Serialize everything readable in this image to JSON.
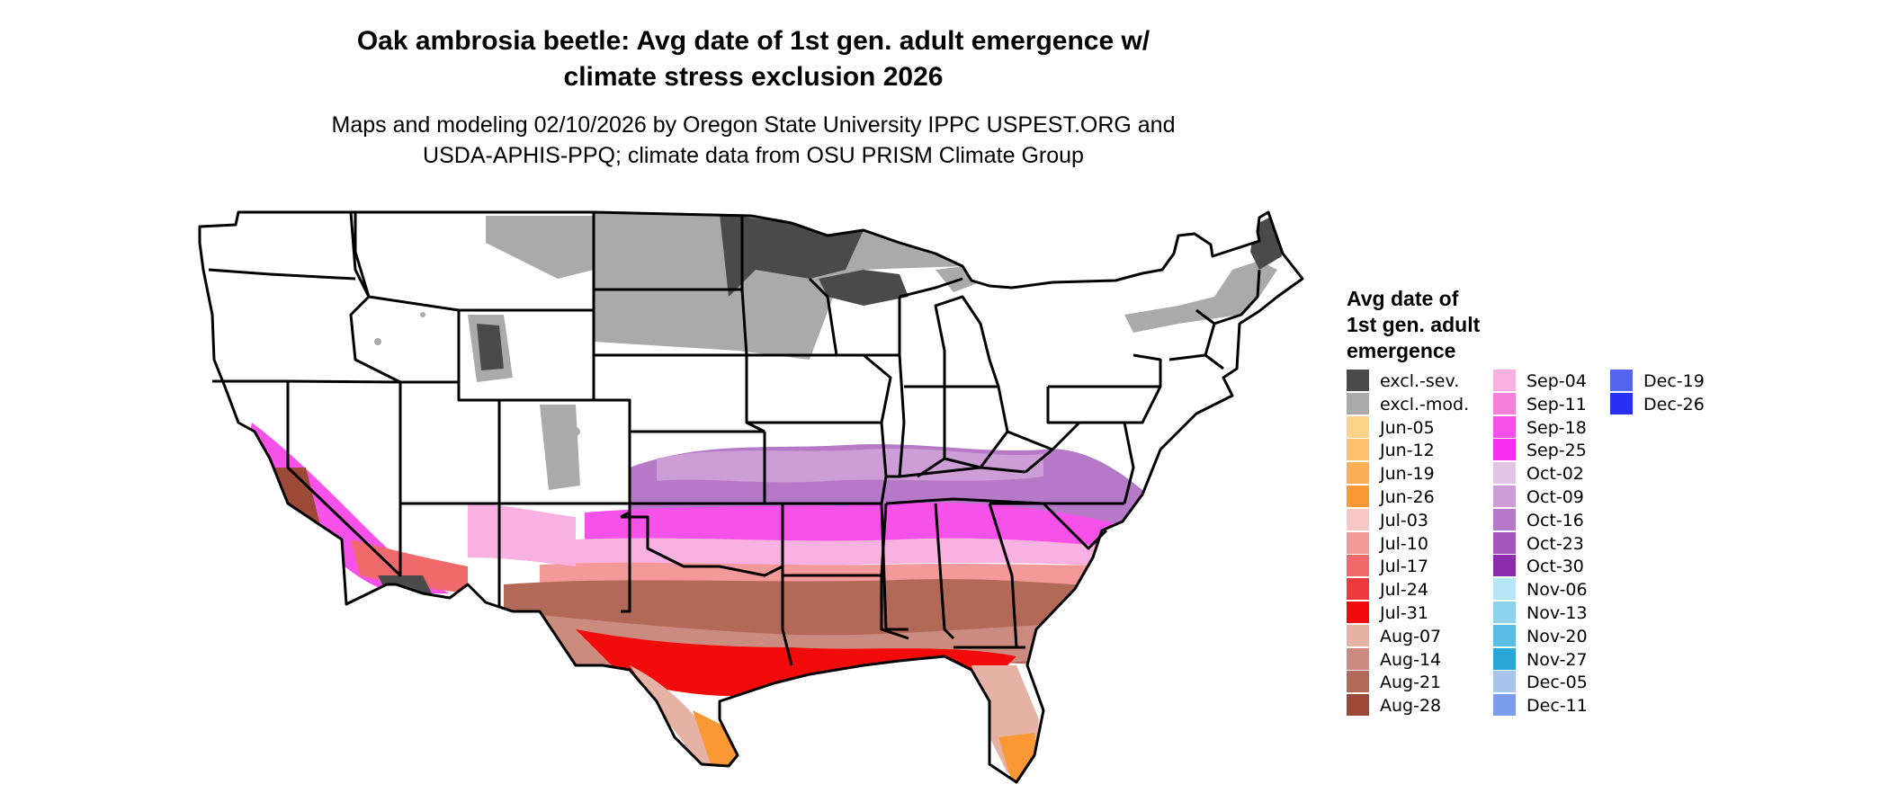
{
  "title_line1": "Oak ambrosia beetle: Avg date of 1st gen. adult emergence w/",
  "title_line2": "climate stress exclusion 2026",
  "subtitle_line1": "Maps and modeling 02/10/2026 by Oregon State University IPPC USPEST.ORG and",
  "subtitle_line2": "USDA-APHIS-PPQ; climate data from OSU PRISM Climate Group",
  "map": {
    "region": "Contiguous United States",
    "state_borders": true,
    "background": "#ffffff",
    "border_color": "#000000"
  },
  "legend": {
    "title_line1": "Avg date of",
    "title_line2": "1st gen. adult",
    "title_line3": "emergence",
    "columns": [
      [
        {
          "label": "excl.-sev.",
          "color": "#4a4a4a"
        },
        {
          "label": "excl.-mod.",
          "color": "#aaaaaa"
        },
        {
          "label": "Jun-05",
          "color": "#fdd28a"
        },
        {
          "label": "Jun-12",
          "color": "#fcc070"
        },
        {
          "label": "Jun-19",
          "color": "#fbae55"
        },
        {
          "label": "Jun-26",
          "color": "#f99835"
        },
        {
          "label": "Jul-03",
          "color": "#f6c7c3"
        },
        {
          "label": "Jul-10",
          "color": "#f3999a"
        },
        {
          "label": "Jul-17",
          "color": "#f06a6c"
        },
        {
          "label": "Jul-24",
          "color": "#ee3a3e"
        },
        {
          "label": "Jul-31",
          "color": "#f30a0a"
        },
        {
          "label": "Aug-07",
          "color": "#e5b2a5"
        },
        {
          "label": "Aug-14",
          "color": "#cb8c7f"
        },
        {
          "label": "Aug-21",
          "color": "#b36957"
        },
        {
          "label": "Aug-28",
          "color": "#9c4a37"
        }
      ],
      [
        {
          "label": "Sep-04",
          "color": "#f8b1e0"
        },
        {
          "label": "Sep-11",
          "color": "#f780da"
        },
        {
          "label": "Sep-18",
          "color": "#f652ea"
        },
        {
          "label": "Sep-25",
          "color": "#f72ef0"
        },
        {
          "label": "Oct-02",
          "color": "#e2c5e5"
        },
        {
          "label": "Oct-09",
          "color": "#cd9ed5"
        },
        {
          "label": "Oct-16",
          "color": "#b679c7"
        },
        {
          "label": "Oct-23",
          "color": "#a357bb"
        },
        {
          "label": "Oct-30",
          "color": "#8b2cab"
        },
        {
          "label": "Nov-06",
          "color": "#b7e6f6"
        },
        {
          "label": "Nov-13",
          "color": "#8fd2ee"
        },
        {
          "label": "Nov-20",
          "color": "#5bbde4"
        },
        {
          "label": "Nov-27",
          "color": "#2aa5d8"
        },
        {
          "label": "Dec-05",
          "color": "#a7c5ea"
        },
        {
          "label": "Dec-11",
          "color": "#7e9cec"
        }
      ],
      [
        {
          "label": "Dec-19",
          "color": "#5466ee"
        },
        {
          "label": "Dec-26",
          "color": "#2831f3"
        }
      ]
    ]
  }
}
